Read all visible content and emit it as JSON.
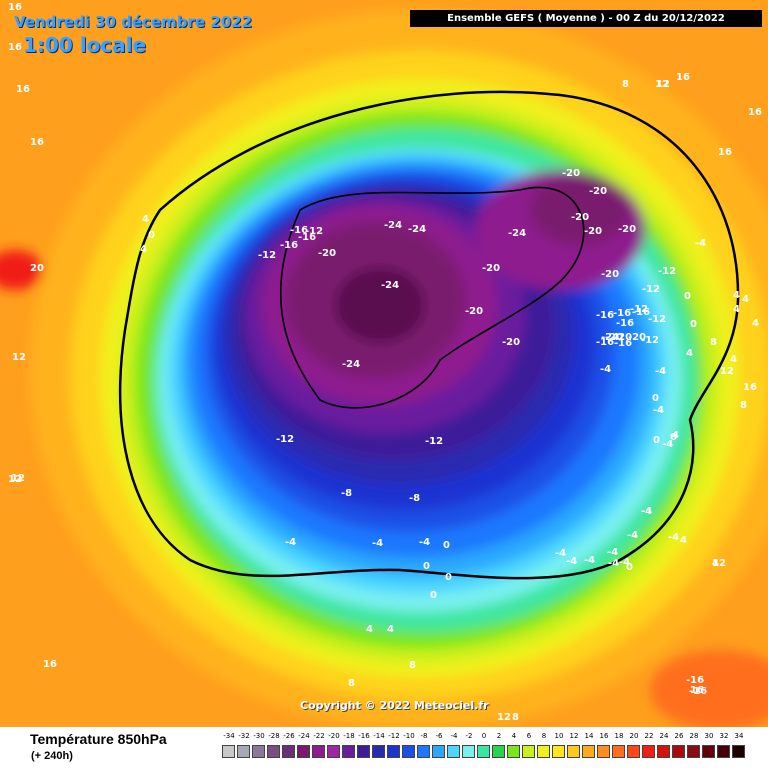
{
  "header": {
    "date": "Vendredi 30 décembre 2022",
    "time": "1:00 locale",
    "run": "Ensemble GEFS  ( Moyenne )  -  00 Z du 20/12/2022"
  },
  "footer": {
    "variable": "Température 850hPa",
    "lead": "(+ 240h)",
    "copyright": "Copyright © 2022 Meteociel.fr"
  },
  "legend": {
    "values": [
      "-34",
      "-32",
      "-30",
      "-28",
      "-26",
      "-24",
      "-22",
      "-20",
      "-18",
      "-16",
      "-14",
      "-12",
      "-10",
      "-8",
      "-6",
      "-4",
      "-2",
      "0",
      "2",
      "4",
      "6",
      "8",
      "10",
      "12",
      "14",
      "16",
      "18",
      "20",
      "22",
      "24",
      "26",
      "28",
      "30",
      "32",
      "34"
    ],
    "colors": [
      "#c8c8c8",
      "#a8a8b4",
      "#8c7896",
      "#7a4c84",
      "#6a2f78",
      "#7a1a6e",
      "#8e1c8e",
      "#a024a6",
      "#6a1e9e",
      "#3c1c9a",
      "#2a2ab0",
      "#1e32d2",
      "#1a50e6",
      "#1e78ff",
      "#2aa8ff",
      "#4cd6ff",
      "#7af0f0",
      "#3ce6a0",
      "#2ad250",
      "#78e61e",
      "#c8f01e",
      "#f0f01e",
      "#ffe61e",
      "#ffc81e",
      "#ffaa1e",
      "#ff8c1e",
      "#ff6e1e",
      "#ff4614",
      "#f01e14",
      "#d2140a",
      "#aa0a0a",
      "#8c0a14",
      "#64000a",
      "#46000a",
      "#1e0000"
    ]
  },
  "contour_labels": [
    {
      "t": "16"
    },
    {
      "t": "16"
    },
    {
      "t": "16"
    },
    {
      "t": "16"
    },
    {
      "t": "12"
    },
    {
      "t": "20"
    },
    {
      "t": "12"
    },
    {
      "t": "16"
    },
    {
      "t": "16"
    },
    {
      "t": "16"
    },
    {
      "t": "8"
    },
    {
      "t": "12"
    },
    {
      "t": "16"
    },
    {
      "t": "4"
    },
    {
      "t": "0"
    },
    {
      "t": "4"
    },
    {
      "t": "-12"
    },
    {
      "t": "-16"
    },
    {
      "t": "-16"
    },
    {
      "t": "-12"
    },
    {
      "t": "-16"
    },
    {
      "t": "-20"
    },
    {
      "t": "-24"
    },
    {
      "t": "-24"
    },
    {
      "t": "-24"
    },
    {
      "t": "-20"
    },
    {
      "t": "-20"
    },
    {
      "t": "-24"
    },
    {
      "t": "-20"
    },
    {
      "t": "-20"
    },
    {
      "t": "-20"
    },
    {
      "t": "-20"
    },
    {
      "t": "-20"
    },
    {
      "t": "-20"
    },
    {
      "t": "-24"
    },
    {
      "t": "-20"
    },
    {
      "t": "-20"
    },
    {
      "t": "-12"
    },
    {
      "t": "-16"
    },
    {
      "t": "-16"
    },
    {
      "t": "-12"
    },
    {
      "t": "-16"
    },
    {
      "t": "-16"
    },
    {
      "t": "-12"
    },
    {
      "t": "-12"
    },
    {
      "t": "-20"
    },
    {
      "t": "-12"
    },
    {
      "t": "-4"
    },
    {
      "t": "0"
    },
    {
      "t": "-4"
    },
    {
      "t": "4"
    },
    {
      "t": "4"
    },
    {
      "t": "8"
    },
    {
      "t": "12"
    },
    {
      "t": "8"
    },
    {
      "t": "4"
    },
    {
      "t": "0"
    },
    {
      "t": "0"
    },
    {
      "t": "-4"
    },
    {
      "t": "-4"
    },
    {
      "t": "0"
    },
    {
      "t": "4"
    },
    {
      "t": "-4"
    },
    {
      "t": "-4"
    },
    {
      "t": "-4"
    },
    {
      "t": "-4"
    },
    {
      "t": "-4"
    },
    {
      "t": "-4"
    },
    {
      "t": "0"
    },
    {
      "t": "-4"
    },
    {
      "t": "-4"
    },
    {
      "t": "0"
    },
    {
      "t": "-4"
    },
    {
      "t": "0"
    },
    {
      "t": "4"
    },
    {
      "t": "4"
    },
    {
      "t": "-12"
    },
    {
      "t": "-12"
    },
    {
      "t": "-8"
    },
    {
      "t": "-8"
    },
    {
      "t": "-4"
    },
    {
      "t": "-4"
    },
    {
      "t": "0"
    },
    {
      "t": "0"
    },
    {
      "t": "4"
    },
    {
      "t": "4"
    },
    {
      "t": "8"
    },
    {
      "t": "8"
    },
    {
      "t": "12"
    },
    {
      "t": "8"
    },
    {
      "t": "16"
    },
    {
      "t": "-16"
    },
    {
      "t": "-16"
    },
    {
      "t": "12"
    },
    {
      "t": "12"
    },
    {
      "t": "4"
    },
    {
      "t": "4"
    },
    {
      "t": "4"
    },
    {
      "t": "12"
    },
    {
      "t": "12"
    },
    {
      "t": "-4"
    },
    {
      "t": "0"
    },
    {
      "t": "-4"
    },
    {
      "t": "-24"
    },
    {
      "t": "-20"
    },
    {
      "t": "-16"
    },
    {
      "t": "-16"
    },
    {
      "t": "-4"
    },
    {
      "t": "16"
    }
  ]
}
